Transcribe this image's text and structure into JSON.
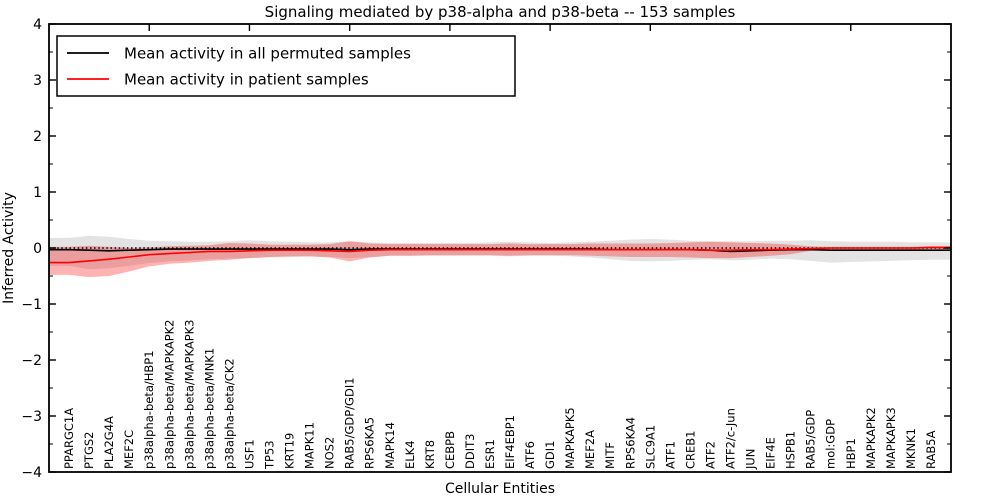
{
  "figure": {
    "title": "Signaling mediated by p38-alpha and p38-beta -- 153 samples",
    "x_axis_label": "Cellular Entities",
    "y_axis_label": "Inferred Activity",
    "background_color": "#ffffff",
    "frame_color": "#000000"
  },
  "legend": {
    "position": "upper left",
    "entries": [
      {
        "label": "Mean activity in all permuted samples",
        "color": "#000000"
      },
      {
        "label": "Mean activity in patient samples",
        "color": "#ff0000"
      }
    ]
  },
  "chart_data": {
    "type": "line",
    "title": "Signaling mediated by p38-alpha and p38-beta -- 153 samples",
    "xlabel": "Cellular Entities",
    "ylabel": "Inferred Activity",
    "ylim": [
      -4,
      4
    ],
    "xlim": [
      0,
      45
    ],
    "grid": false,
    "legend_position": "upper left",
    "y_ticks": [
      -4,
      -3,
      -2,
      -1,
      0,
      1,
      2,
      3,
      4
    ],
    "y_tick_labels": [
      "−4",
      "−3",
      "−2",
      "−1",
      "0",
      "1",
      "2",
      "3",
      "4"
    ],
    "y_minor_tick_step": 0.5,
    "x_top_ticks": [
      5,
      10,
      15,
      20,
      25,
      30,
      35,
      40
    ],
    "zero_line": {
      "value": 0,
      "style": "dotted",
      "color": "#000000"
    },
    "categories": [
      "PPARGC1A",
      "PTGS2",
      "PLA2G4A",
      "MEF2C",
      "p38alpha-beta/HBP1",
      "p38alpha-beta/MAPKAPK2",
      "p38alpha-beta/MAPKAPK3",
      "p38alpha-beta/MNK1",
      "p38alpha-beta/CK2",
      "USF1",
      "TP53",
      "KRT19",
      "MAPK11",
      "NOS2",
      "RAB5/GDP/GDI1",
      "RPS6KA5",
      "MAPK14",
      "ELK4",
      "KRT8",
      "CEBPB",
      "DDIT3",
      "ESR1",
      "EIF4EBP1",
      "ATF6",
      "GDI1",
      "MAPKAPK5",
      "MEF2A",
      "MITF",
      "RPS6KA4",
      "SLC9A1",
      "ATF1",
      "CREB1",
      "ATF2",
      "ATF2/c-Jun",
      "JUN",
      "EIF4E",
      "HSPB1",
      "RAB5/GDP",
      "mol:GDP",
      "HBP1",
      "MAPKAPK2",
      "MAPKAPK3",
      "MKNK1",
      "RAB5A"
    ],
    "series": [
      {
        "name": "Mean activity in all permuted samples",
        "color": "#000000",
        "values": [
          -0.03,
          -0.04,
          -0.05,
          -0.04,
          -0.03,
          -0.02,
          -0.02,
          -0.02,
          -0.02,
          -0.02,
          -0.02,
          -0.02,
          -0.02,
          -0.02,
          -0.03,
          -0.02,
          -0.02,
          -0.02,
          -0.02,
          -0.02,
          -0.02,
          -0.02,
          -0.02,
          -0.02,
          -0.02,
          -0.02,
          -0.02,
          -0.03,
          -0.03,
          -0.03,
          -0.03,
          -0.03,
          -0.04,
          -0.06,
          -0.05,
          -0.04,
          -0.03,
          -0.03,
          -0.04,
          -0.04,
          -0.04,
          -0.04,
          -0.04,
          -0.04
        ]
      },
      {
        "name": "Mean activity in patient samples",
        "color": "#ff0000",
        "values": [
          -0.26,
          -0.23,
          -0.2,
          -0.16,
          -0.12,
          -0.1,
          -0.08,
          -0.06,
          -0.06,
          -0.05,
          -0.04,
          -0.04,
          -0.04,
          -0.05,
          -0.06,
          -0.04,
          -0.03,
          -0.03,
          -0.03,
          -0.03,
          -0.03,
          -0.03,
          -0.03,
          -0.03,
          -0.03,
          -0.03,
          -0.03,
          -0.03,
          -0.03,
          -0.03,
          -0.03,
          -0.03,
          -0.04,
          -0.04,
          -0.03,
          -0.03,
          -0.02,
          -0.01,
          0.0,
          0.0,
          0.0,
          0.0,
          0.0,
          0.01
        ]
      }
    ],
    "bands": [
      {
        "name": "Permuted samples activity spread",
        "color": "rgba(0,0,0,0.11)",
        "upper": [
          0.18,
          0.22,
          0.2,
          0.16,
          0.13,
          0.12,
          0.11,
          0.11,
          0.12,
          0.14,
          0.12,
          0.11,
          0.1,
          0.1,
          0.12,
          0.1,
          0.09,
          0.09,
          0.09,
          0.09,
          0.09,
          0.1,
          0.11,
          0.1,
          0.09,
          0.1,
          0.11,
          0.13,
          0.15,
          0.16,
          0.15,
          0.13,
          0.12,
          0.12,
          0.12,
          0.13,
          0.13,
          0.14,
          0.12,
          0.11,
          0.11,
          0.11,
          0.1,
          0.1
        ],
        "lower": [
          -0.32,
          -0.38,
          -0.36,
          -0.32,
          -0.27,
          -0.24,
          -0.22,
          -0.2,
          -0.19,
          -0.18,
          -0.17,
          -0.16,
          -0.15,
          -0.16,
          -0.18,
          -0.16,
          -0.14,
          -0.14,
          -0.14,
          -0.14,
          -0.14,
          -0.14,
          -0.15,
          -0.14,
          -0.14,
          -0.15,
          -0.17,
          -0.2,
          -0.23,
          -0.24,
          -0.23,
          -0.21,
          -0.2,
          -0.22,
          -0.21,
          -0.19,
          -0.2,
          -0.23,
          -0.26,
          -0.25,
          -0.24,
          -0.23,
          -0.22,
          -0.21
        ]
      },
      {
        "name": "Patient samples activity spread",
        "color": "rgba(255,0,0,0.30)",
        "upper": [
          0.02,
          0.04,
          0.02,
          0.0,
          0.01,
          0.03,
          0.04,
          0.05,
          0.09,
          0.08,
          0.06,
          0.06,
          0.06,
          0.07,
          0.12,
          0.08,
          0.07,
          0.07,
          0.07,
          0.07,
          0.07,
          0.07,
          0.08,
          0.07,
          0.07,
          0.07,
          0.08,
          0.08,
          0.08,
          0.08,
          0.09,
          0.1,
          0.11,
          0.1,
          0.09,
          0.08,
          0.06,
          0.03,
          0.02,
          0.02,
          0.02,
          0.02,
          0.02,
          0.03
        ],
        "lower": [
          -0.48,
          -0.52,
          -0.5,
          -0.42,
          -0.33,
          -0.28,
          -0.26,
          -0.23,
          -0.21,
          -0.18,
          -0.16,
          -0.15,
          -0.15,
          -0.17,
          -0.24,
          -0.17,
          -0.14,
          -0.14,
          -0.13,
          -0.13,
          -0.13,
          -0.13,
          -0.14,
          -0.13,
          -0.13,
          -0.13,
          -0.14,
          -0.15,
          -0.16,
          -0.16,
          -0.16,
          -0.17,
          -0.18,
          -0.18,
          -0.16,
          -0.14,
          -0.11,
          -0.05,
          -0.03,
          -0.03,
          -0.03,
          -0.03,
          -0.03,
          -0.02
        ]
      }
    ]
  }
}
